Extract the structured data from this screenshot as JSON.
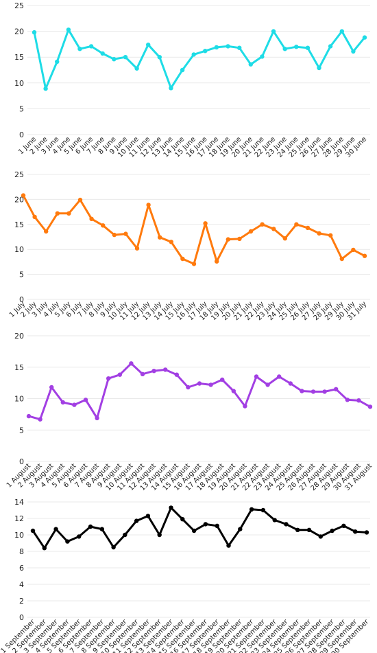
{
  "chart_data": [
    {
      "type": "line",
      "series": [
        {
          "color": "#1edce6",
          "values": [
            19.8,
            8.9,
            14.1,
            20.3,
            16.6,
            17.1,
            15.7,
            14.6,
            15.0,
            12.8,
            17.4,
            15.0,
            9.0,
            12.5,
            15.5,
            16.2,
            16.9,
            17.1,
            16.8,
            13.6,
            15.1,
            20.0,
            16.6,
            17.0,
            16.8,
            12.9,
            17.1,
            20.0,
            16.1,
            18.8
          ]
        }
      ],
      "categories": [
        "1 June",
        "2 June",
        "3 June",
        "4 June",
        "5 June",
        "6 June",
        "7 June",
        "8 June",
        "9 June",
        "10 June",
        "11 June",
        "12 June",
        "13 June",
        "14 June",
        "15 June",
        "16 June",
        "17 June",
        "18 June",
        "19 June",
        "20 June",
        "21 June",
        "22 June",
        "23 June",
        "24 June",
        "25 June",
        "26 June",
        "27 June",
        "28 June",
        "29 June",
        "30 June"
      ],
      "ylim": [
        0,
        25
      ],
      "yticks": [
        0,
        5,
        10,
        15,
        20,
        25
      ],
      "grid": true,
      "legend": "none"
    },
    {
      "type": "line",
      "series": [
        {
          "color": "#ff7a0d",
          "values": [
            20.8,
            16.5,
            13.6,
            17.2,
            17.2,
            19.9,
            16.1,
            14.8,
            12.9,
            13.1,
            10.2,
            18.9,
            12.4,
            11.5,
            8.1,
            7.1,
            15.2,
            7.6,
            12.0,
            12.1,
            13.6,
            15.0,
            14.1,
            12.2,
            15.0,
            14.3,
            13.2,
            12.8,
            8.1,
            9.9,
            8.7
          ]
        }
      ],
      "categories": [
        "1 July",
        "2 July",
        "3 July",
        "4 July",
        "5 July",
        "6 July",
        "7 July",
        "8 July",
        "9 July",
        "10 July",
        "11 July",
        "12 July",
        "13 July",
        "14 July",
        "15 July",
        "16 July",
        "17 July",
        "18 July",
        "19 July",
        "20 July",
        "21 July",
        "22 July",
        "23 July",
        "24 July",
        "25 July",
        "26 July",
        "27 July",
        "28 July",
        "29 July",
        "30 July",
        "31 July"
      ],
      "ylim": [
        0,
        25
      ],
      "yticks": [
        0,
        5,
        10,
        15,
        20,
        25
      ],
      "grid": true,
      "legend": "none"
    },
    {
      "type": "line",
      "series": [
        {
          "color": "#a23fe3",
          "values": [
            7.2,
            6.7,
            11.8,
            9.4,
            9.0,
            9.8,
            6.9,
            13.2,
            13.8,
            15.6,
            13.9,
            14.4,
            14.6,
            13.8,
            11.8,
            12.4,
            12.2,
            13.0,
            11.2,
            8.8,
            13.5,
            12.2,
            13.5,
            12.4,
            11.2,
            11.1,
            11.1,
            11.5,
            9.8,
            9.7,
            8.7
          ]
        }
      ],
      "categories": [
        "1 August",
        "2 August",
        "3 August",
        "4 August",
        "5 August",
        "6 August",
        "7 August",
        "8 August",
        "9 August",
        "10 August",
        "11 August",
        "12 August",
        "13 August",
        "14 August",
        "15 August",
        "16 August",
        "17 August",
        "18 August",
        "19 August",
        "20 August",
        "21 August",
        "22 August",
        "23 August",
        "24 August",
        "25 August",
        "26 August",
        "27 August",
        "28 August",
        "29 August",
        "30 August",
        "31 August"
      ],
      "ylim": [
        0,
        20
      ],
      "yticks": [
        0,
        5,
        10,
        15,
        20
      ],
      "grid": true,
      "legend": "none"
    },
    {
      "type": "line",
      "series": [
        {
          "color": "#000000",
          "values": [
            10.5,
            8.4,
            10.7,
            9.2,
            9.8,
            11.0,
            10.7,
            8.5,
            10.0,
            11.7,
            12.3,
            10.0,
            13.3,
            11.9,
            10.5,
            11.3,
            11.1,
            8.7,
            10.7,
            13.1,
            13.0,
            11.8,
            11.3,
            10.6,
            10.6,
            9.8,
            10.5,
            11.1,
            10.4,
            10.3
          ]
        }
      ],
      "categories": [
        "1 September",
        "2 September",
        "3 September",
        "4 September",
        "5 September",
        "6 September",
        "7 September",
        "8 September",
        "9 September",
        "10 September",
        "11 September",
        "12 September",
        "13 September",
        "14 September",
        "15 September",
        "16 September",
        "17 September",
        "18 September",
        "19 September",
        "20 September",
        "21 September",
        "22 September",
        "23 September",
        "24 September",
        "25 September",
        "26 September",
        "27 September",
        "28 September",
        "29 September",
        "30 September"
      ],
      "ylim": [
        0,
        14
      ],
      "yticks": [
        0,
        2,
        4,
        6,
        8,
        10,
        12,
        14
      ],
      "grid": true,
      "legend": "none"
    }
  ]
}
